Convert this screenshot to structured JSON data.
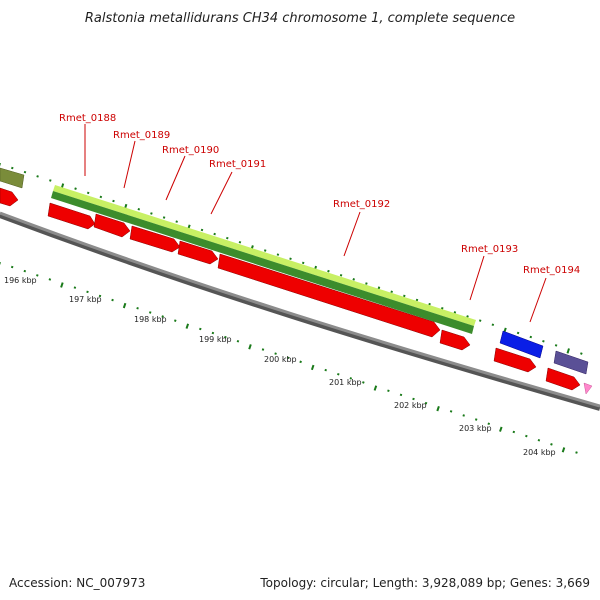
{
  "title": "Ralstonia metallidurans CH34 chromosome 1, complete sequence",
  "accession_text": "Accession: NC_007973",
  "topology_text": "Topology: circular; Length: 3,928,089 bp; Genes: 3,669",
  "colors": {
    "gene_cds": "#ee0000",
    "feature_lime": "#c8f064",
    "feature_green": "#3c8c2c",
    "feature_olive": "#7a8c3a",
    "feature_blue": "#0a1ee6",
    "feature_slate": "#5a5096",
    "backbone": "#8c8c8c",
    "tick_marks": "#1a7a1a",
    "label_red": "#cc0000"
  },
  "genes": [
    {
      "name": "Rmet_0188"
    },
    {
      "name": "Rmet_0189"
    },
    {
      "name": "Rmet_0190"
    },
    {
      "name": "Rmet_0191"
    },
    {
      "name": "Rmet_0192"
    },
    {
      "name": "Rmet_0193"
    },
    {
      "name": "Rmet_0194"
    }
  ],
  "scale_labels": [
    "196 kbp",
    "197 kbp",
    "198 kbp",
    "199 kbp",
    "200 kbp",
    "201 kbp",
    "202 kbp",
    "203 kbp",
    "204 kbp"
  ]
}
